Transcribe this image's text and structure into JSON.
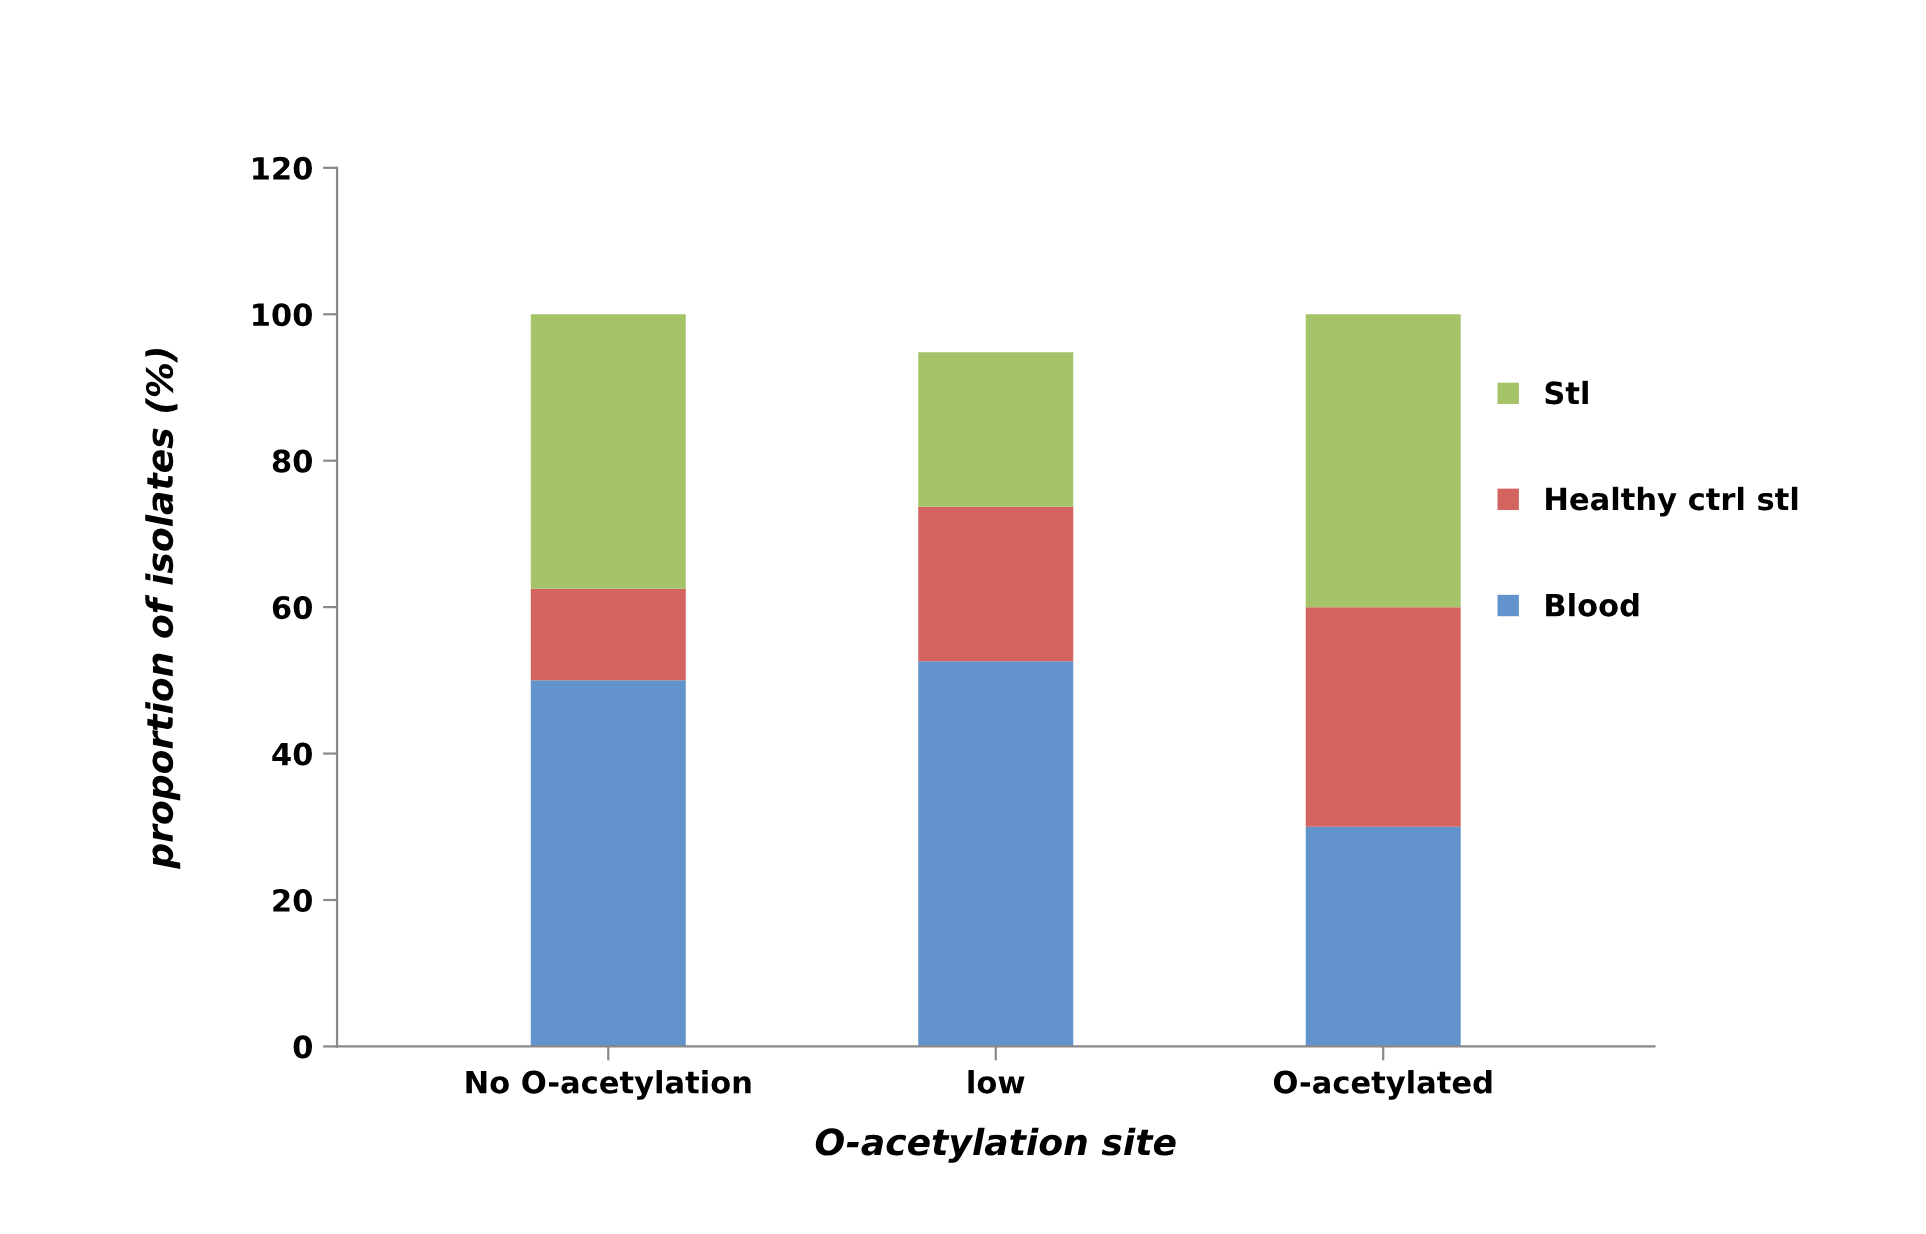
{
  "chart_data": {
    "type": "bar",
    "stacked": true,
    "xlabel": "O-acetylation site",
    "ylabel": "proportion of isolates (%)",
    "categories": [
      "No O-acetylation",
      "low",
      "O-acetylated"
    ],
    "series": [
      {
        "name": "Blood",
        "color": "#6393cd",
        "values": [
          50,
          52.6,
          30
        ]
      },
      {
        "name": "Healthy ctrl stl",
        "color": "#d4645f",
        "values": [
          12.5,
          21.1,
          30
        ]
      },
      {
        "name": "Stl",
        "color": "#a5c46a",
        "values": [
          37.5,
          21.1,
          40
        ]
      }
    ],
    "ylim": [
      0,
      120
    ],
    "yticks": [
      0,
      20,
      40,
      60,
      80,
      100,
      120
    ],
    "grid": false,
    "legend": "right"
  }
}
